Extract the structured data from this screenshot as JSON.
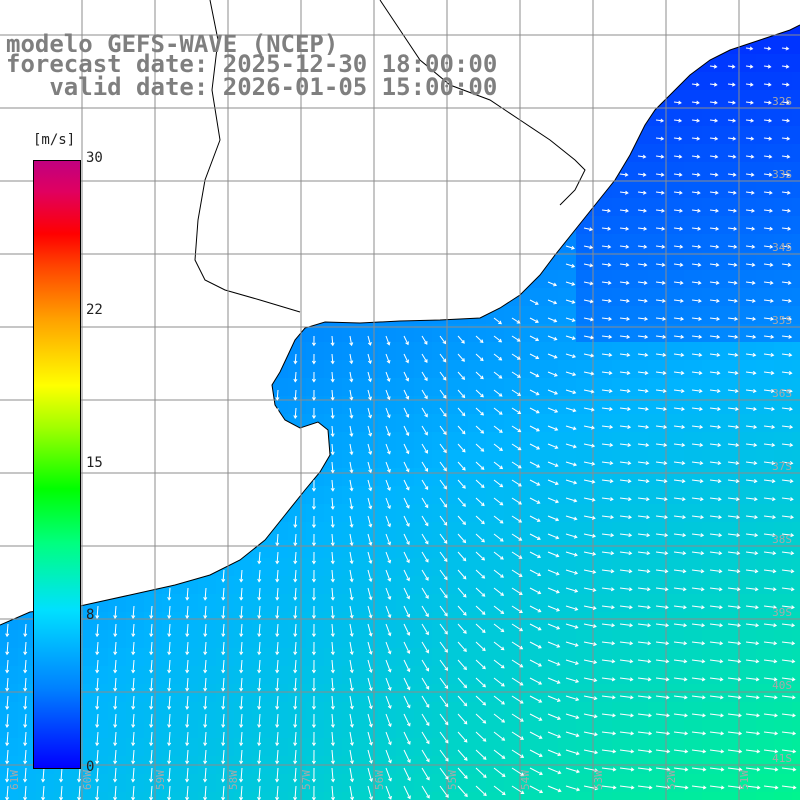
{
  "title": {
    "line1": "modelo GEFS-WAVE (NCEP)",
    "line2": "forecast date: 2025-12-30 18:00:00",
    "line3": "   valid date: 2026-01-05 15:00:00"
  },
  "colorbar": {
    "unit": "[m/s]",
    "ticks": [
      "30",
      "22",
      "15",
      "8",
      "0"
    ],
    "tick_values": [
      30,
      22,
      15,
      8,
      0
    ],
    "colors": [
      "#0000ff",
      "#00e0ff",
      "#00ff00",
      "#ffff00",
      "#ff0000",
      "#c00080"
    ]
  },
  "latitude_labels": [
    "32S",
    "33S",
    "34S",
    "35S",
    "36S",
    "37S",
    "38S",
    "39S",
    "40S",
    "41S"
  ],
  "longitude_labels": [
    "61W",
    "60W",
    "59W",
    "58W",
    "57W",
    "56W",
    "55W",
    "54W",
    "53W",
    "52W",
    "51W"
  ],
  "map": {
    "land_color": "#ffffff",
    "grid_color": "#8c8c8c",
    "arrow_color": "#ffffff",
    "coast_color": "#000000"
  }
}
